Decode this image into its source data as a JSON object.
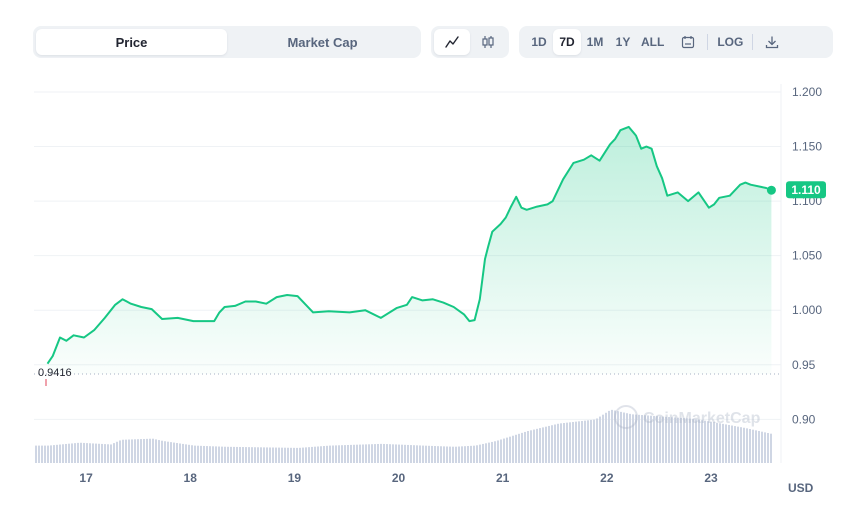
{
  "tabs": [
    {
      "label": "Price",
      "active": true
    },
    {
      "label": "Market Cap",
      "active": false
    }
  ],
  "chart_type_buttons": [
    {
      "icon": "line-chart-icon",
      "active": true
    },
    {
      "icon": "candlestick-chart-icon",
      "active": false
    }
  ],
  "ranges": [
    {
      "label": "1D",
      "active": false
    },
    {
      "label": "7D",
      "active": true
    },
    {
      "label": "1M",
      "active": false
    },
    {
      "label": "1Y",
      "active": false
    },
    {
      "label": "ALL",
      "active": false
    }
  ],
  "toolbar": {
    "calendar_icon": "calendar-icon",
    "log_label": "LOG",
    "download_icon": "download-icon"
  },
  "currency_label": "USD",
  "watermark": "CoinMarketCap",
  "colors": {
    "line": "#16c784",
    "price_badge": "#16c784",
    "volume": "#cfd6e4",
    "reference": "#e0435a"
  },
  "chart_data": {
    "type": "area",
    "y_ticks": [
      "1.200",
      "1.150",
      "1.100",
      "1.050",
      "1.000",
      "0.95",
      "0.90"
    ],
    "ylim": [
      0.86,
      1.2
    ],
    "x_ticks": [
      "17",
      "18",
      "19",
      "20",
      "21",
      "22",
      "23"
    ],
    "grid": true,
    "start_price_label": "0.9416",
    "start_price": 0.9416,
    "current_price_label": "1.110",
    "current_price": 1.11,
    "series": [
      {
        "x": [
          16.6,
          16.65,
          16.72,
          16.78,
          16.85,
          16.95,
          17.05,
          17.15,
          17.25,
          17.32,
          17.4,
          17.5,
          17.6,
          17.7,
          17.85,
          18.0,
          18.1,
          18.2,
          18.25,
          18.3,
          18.4,
          18.5,
          18.6,
          18.7,
          18.8,
          18.9,
          19.0,
          19.15,
          19.3,
          19.5,
          19.65,
          19.8,
          19.95,
          20.05,
          20.1,
          20.2,
          20.3,
          20.4,
          20.5,
          20.6,
          20.65,
          20.7,
          20.75,
          20.8,
          20.83,
          20.87,
          20.95,
          21.0,
          21.05,
          21.1,
          21.15,
          21.2,
          21.3,
          21.4,
          21.45,
          21.55,
          21.65,
          21.75,
          21.82,
          21.9,
          22.0,
          22.05,
          22.1,
          22.18,
          22.25,
          22.3,
          22.35,
          22.4,
          22.45,
          22.5,
          22.55,
          22.65,
          22.75,
          22.85,
          22.95,
          23.0,
          23.05,
          23.15,
          23.25,
          23.3,
          23.35,
          23.45,
          23.5,
          23.55
        ],
        "y": [
          0.951,
          0.958,
          0.975,
          0.972,
          0.977,
          0.975,
          0.982,
          0.993,
          1.005,
          1.01,
          1.006,
          1.003,
          1.001,
          0.992,
          0.993,
          0.99,
          0.99,
          0.99,
          0.998,
          1.003,
          1.004,
          1.008,
          1.008,
          1.006,
          1.012,
          1.014,
          1.013,
          0.998,
          0.999,
          0.998,
          1.0,
          0.993,
          1.002,
          1.005,
          1.012,
          1.009,
          1.01,
          1.007,
          1.003,
          0.996,
          0.99,
          0.991,
          1.01,
          1.047,
          1.058,
          1.072,
          1.079,
          1.085,
          1.095,
          1.104,
          1.094,
          1.092,
          1.095,
          1.097,
          1.1,
          1.12,
          1.135,
          1.138,
          1.142,
          1.137,
          1.152,
          1.157,
          1.165,
          1.168,
          1.16,
          1.148,
          1.15,
          1.148,
          1.132,
          1.121,
          1.105,
          1.108,
          1.1,
          1.108,
          1.094,
          1.097,
          1.103,
          1.105,
          1.115,
          1.117,
          1.115,
          1.113,
          1.112,
          1.11
        ]
      }
    ],
    "volume": {
      "x": [
        16.6,
        16.9,
        17.2,
        17.3,
        17.6,
        17.7,
        18.0,
        18.3,
        19.0,
        19.3,
        19.8,
        20.2,
        20.5,
        20.7,
        20.9,
        21.2,
        21.5,
        21.7,
        21.85,
        22.0,
        22.2,
        22.5,
        22.8,
        23.0,
        23.3,
        23.55
      ],
      "values": [
        0.3,
        0.35,
        0.32,
        0.4,
        0.42,
        0.38,
        0.3,
        0.28,
        0.26,
        0.3,
        0.33,
        0.3,
        0.28,
        0.3,
        0.38,
        0.55,
        0.68,
        0.72,
        0.75,
        0.92,
        0.84,
        0.8,
        0.76,
        0.7,
        0.6,
        0.5
      ]
    }
  }
}
